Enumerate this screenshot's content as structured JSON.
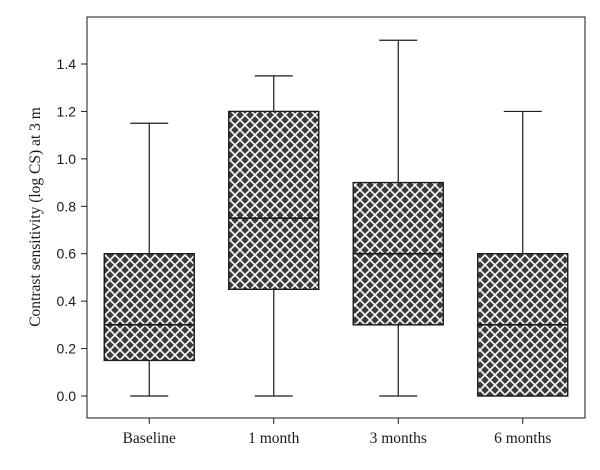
{
  "chart_data": {
    "type": "box",
    "ylabel": "Contrast sensitivity (log CS) at 3 m",
    "xlabel": "",
    "ylim": [
      -0.07,
      1.57
    ],
    "yticks": [
      0.0,
      0.2,
      0.4,
      0.6,
      0.8,
      1.0,
      1.2,
      1.4
    ],
    "ytick_labels": [
      "0.0",
      "0.2",
      "0.4",
      "0.6",
      "0.8",
      "1.0",
      "1.2",
      "1.4"
    ],
    "categories": [
      "Baseline",
      "1 month",
      "3 months",
      "6 months"
    ],
    "boxes": [
      {
        "category": "Baseline",
        "min": 0.0,
        "q1": 0.15,
        "median": 0.3,
        "q3": 0.6,
        "max": 1.15
      },
      {
        "category": "1 month",
        "min": 0.0,
        "q1": 0.45,
        "median": 0.75,
        "q3": 1.2,
        "max": 1.35
      },
      {
        "category": "3 months",
        "min": 0.0,
        "q1": 0.3,
        "median": 0.6,
        "q3": 0.9,
        "max": 1.5
      },
      {
        "category": "6 months",
        "min": 0.0,
        "q1": 0.0,
        "median": 0.3,
        "q3": 0.6,
        "max": 1.2
      }
    ],
    "fill_pattern": "crosshatch",
    "colors": {
      "box_fill": "#3c3c3c",
      "hatch": "#ffffff",
      "lines": "#1a1a1a"
    },
    "grid": false
  }
}
